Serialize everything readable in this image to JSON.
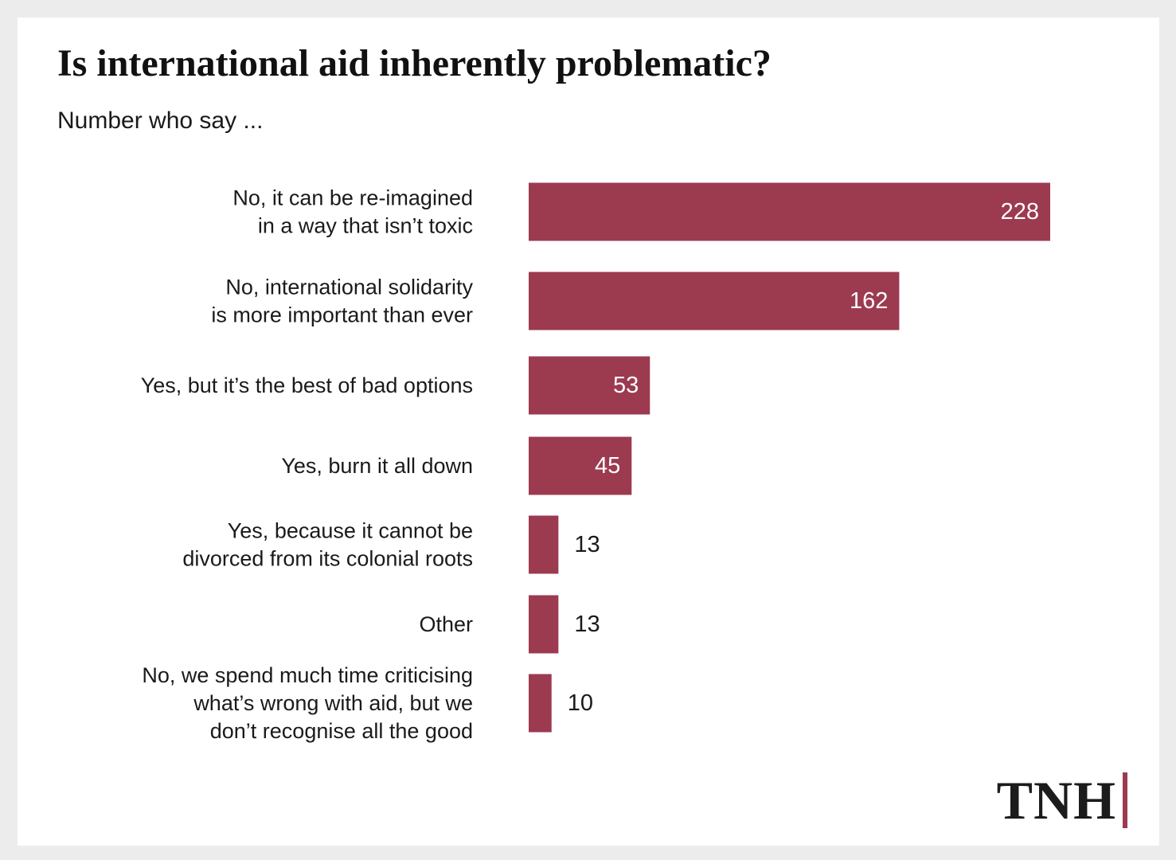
{
  "chart_data": {
    "type": "bar",
    "orientation": "horizontal",
    "title": "Is international aid inherently problematic?",
    "subtitle": "Number who say ...",
    "categories": [
      [
        "No, it can be re-imagined",
        "in a way that isn’t toxic"
      ],
      [
        "No, international solidarity",
        "is more important than ever"
      ],
      [
        "Yes, but it’s the best of bad options"
      ],
      [
        "Yes, burn it all down"
      ],
      [
        "Yes, because it cannot be",
        "divorced from its colonial roots"
      ],
      [
        "Other"
      ],
      [
        "No, we spend much time criticising",
        "what’s wrong with aid, but we",
        "don’t recognise all the good"
      ]
    ],
    "values": [
      228,
      162,
      53,
      45,
      13,
      13,
      10
    ],
    "xlim": [
      0,
      228
    ],
    "grid": false,
    "legend": "none",
    "bar_color": "#9c3a50"
  },
  "branding": {
    "logo_text": "TNH",
    "logo_accent_color": "#9c3a50"
  }
}
